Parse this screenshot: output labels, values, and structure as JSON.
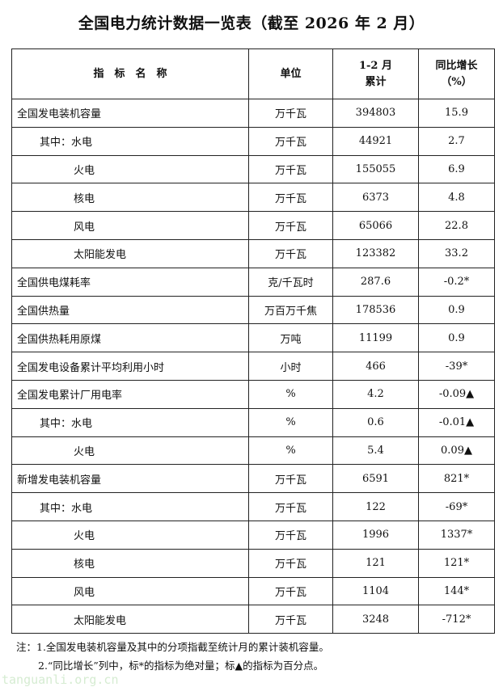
{
  "title": "全国电力统计数据一览表（截至 2026 年 2 月）",
  "headers": {
    "name": "指　标　名　称",
    "unit": "单位",
    "cumulative_line1": "1-2 月",
    "cumulative_line2": "累计",
    "growth_line1": "同比增长",
    "growth_line2": "（%）"
  },
  "rows": [
    {
      "name": "全国发电装机容量",
      "level": 0,
      "unit": "万千瓦",
      "value": "394803",
      "growth": "15.9"
    },
    {
      "name": "其中：水电",
      "level": 1,
      "unit": "万千瓦",
      "value": "44921",
      "growth": "2.7"
    },
    {
      "name": "火电",
      "level": 2,
      "unit": "万千瓦",
      "value": "155055",
      "growth": "6.9"
    },
    {
      "name": "核电",
      "level": 2,
      "unit": "万千瓦",
      "value": "6373",
      "growth": "4.8"
    },
    {
      "name": "风电",
      "level": 2,
      "unit": "万千瓦",
      "value": "65066",
      "growth": "22.8"
    },
    {
      "name": "太阳能发电",
      "level": 2,
      "unit": "万千瓦",
      "value": "123382",
      "growth": "33.2"
    },
    {
      "name": "全国供电煤耗率",
      "level": 0,
      "unit": "克/千瓦时",
      "value": "287.6",
      "growth": "-0.2*"
    },
    {
      "name": "全国供热量",
      "level": 0,
      "unit": "万百万千焦",
      "value": "178536",
      "growth": "0.9"
    },
    {
      "name": "全国供热耗用原煤",
      "level": 0,
      "unit": "万吨",
      "value": "11199",
      "growth": "0.9"
    },
    {
      "name": "全国发电设备累计平均利用小时",
      "level": 0,
      "unit": "小时",
      "value": "466",
      "growth": "-39*"
    },
    {
      "name": "全国发电累计厂用电率",
      "level": 0,
      "unit": "%",
      "value": "4.2",
      "growth": "-0.09▲"
    },
    {
      "name": "其中：水电",
      "level": 1,
      "unit": "%",
      "value": "0.6",
      "growth": "-0.01▲"
    },
    {
      "name": "火电",
      "level": 2,
      "unit": "%",
      "value": "5.4",
      "growth": "0.09▲"
    },
    {
      "name": "新增发电装机容量",
      "level": 0,
      "unit": "万千瓦",
      "value": "6591",
      "growth": "821*"
    },
    {
      "name": "其中：水电",
      "level": 1,
      "unit": "万千瓦",
      "value": "122",
      "growth": "-69*"
    },
    {
      "name": "火电",
      "level": 2,
      "unit": "万千瓦",
      "value": "1996",
      "growth": "1337*"
    },
    {
      "name": "核电",
      "level": 2,
      "unit": "万千瓦",
      "value": "121",
      "growth": "121*"
    },
    {
      "name": "风电",
      "level": 2,
      "unit": "万千瓦",
      "value": "1104",
      "growth": "144*"
    },
    {
      "name": "太阳能发电",
      "level": 2,
      "unit": "万千瓦",
      "value": "3248",
      "growth": "-712*"
    }
  ],
  "notes": [
    "注：1.全国发电装机容量及其中的分项指截至统计月的累计装机容量。",
    "2.“同比增长”列中，标*的指标为绝对量；标▲的指标为百分点。"
  ],
  "watermark": "tanguanli.org.cn"
}
